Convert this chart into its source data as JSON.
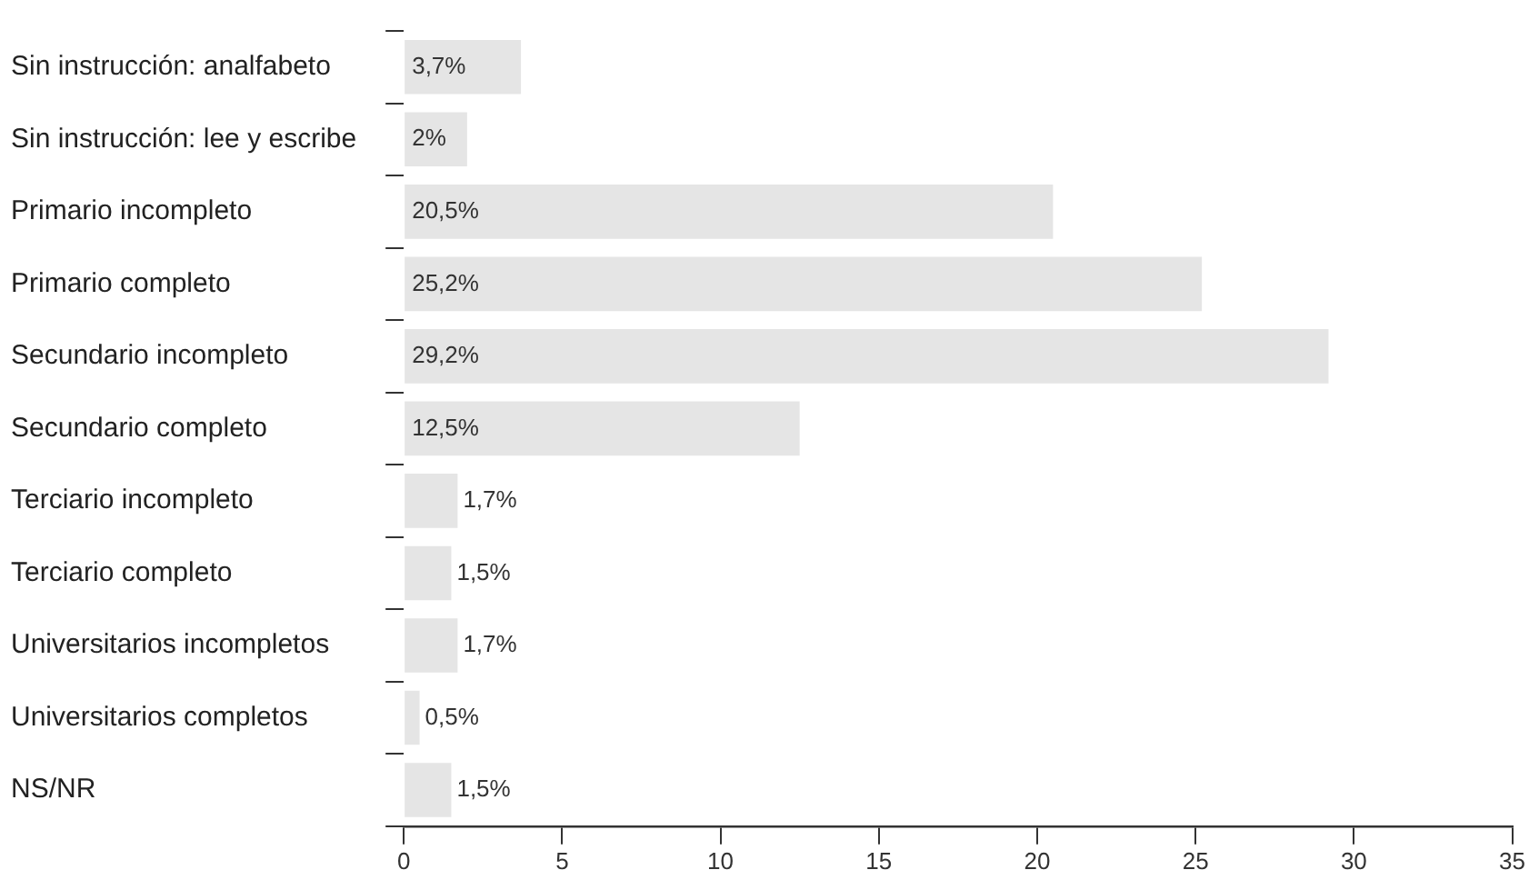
{
  "chart_data": {
    "type": "bar",
    "orientation": "horizontal",
    "categories": [
      "Sin instrucción: analfabeto",
      "Sin instrucción: lee y escribe",
      "Primario incompleto",
      "Primario completo",
      "Secundario incompleto",
      "Secundario completo",
      "Terciario incompleto",
      "Terciario completo",
      "Universitarios incompletos",
      "Universitarios completos",
      "NS/NR"
    ],
    "values": [
      3.7,
      2,
      20.5,
      25.2,
      29.2,
      12.5,
      1.7,
      1.5,
      1.7,
      0.5,
      1.5
    ],
    "value_labels": [
      "3,7%",
      "2%",
      "20,5%",
      "25,2%",
      "29,2%",
      "12,5%",
      "1,7%",
      "1,5%",
      "1,7%",
      "0,5%",
      "1,5%"
    ],
    "color": "#e5e5e5",
    "xlim": [
      0,
      35
    ],
    "xticks": [
      0,
      5,
      10,
      15,
      20,
      25,
      30,
      35
    ],
    "grid": false,
    "legend": false
  }
}
